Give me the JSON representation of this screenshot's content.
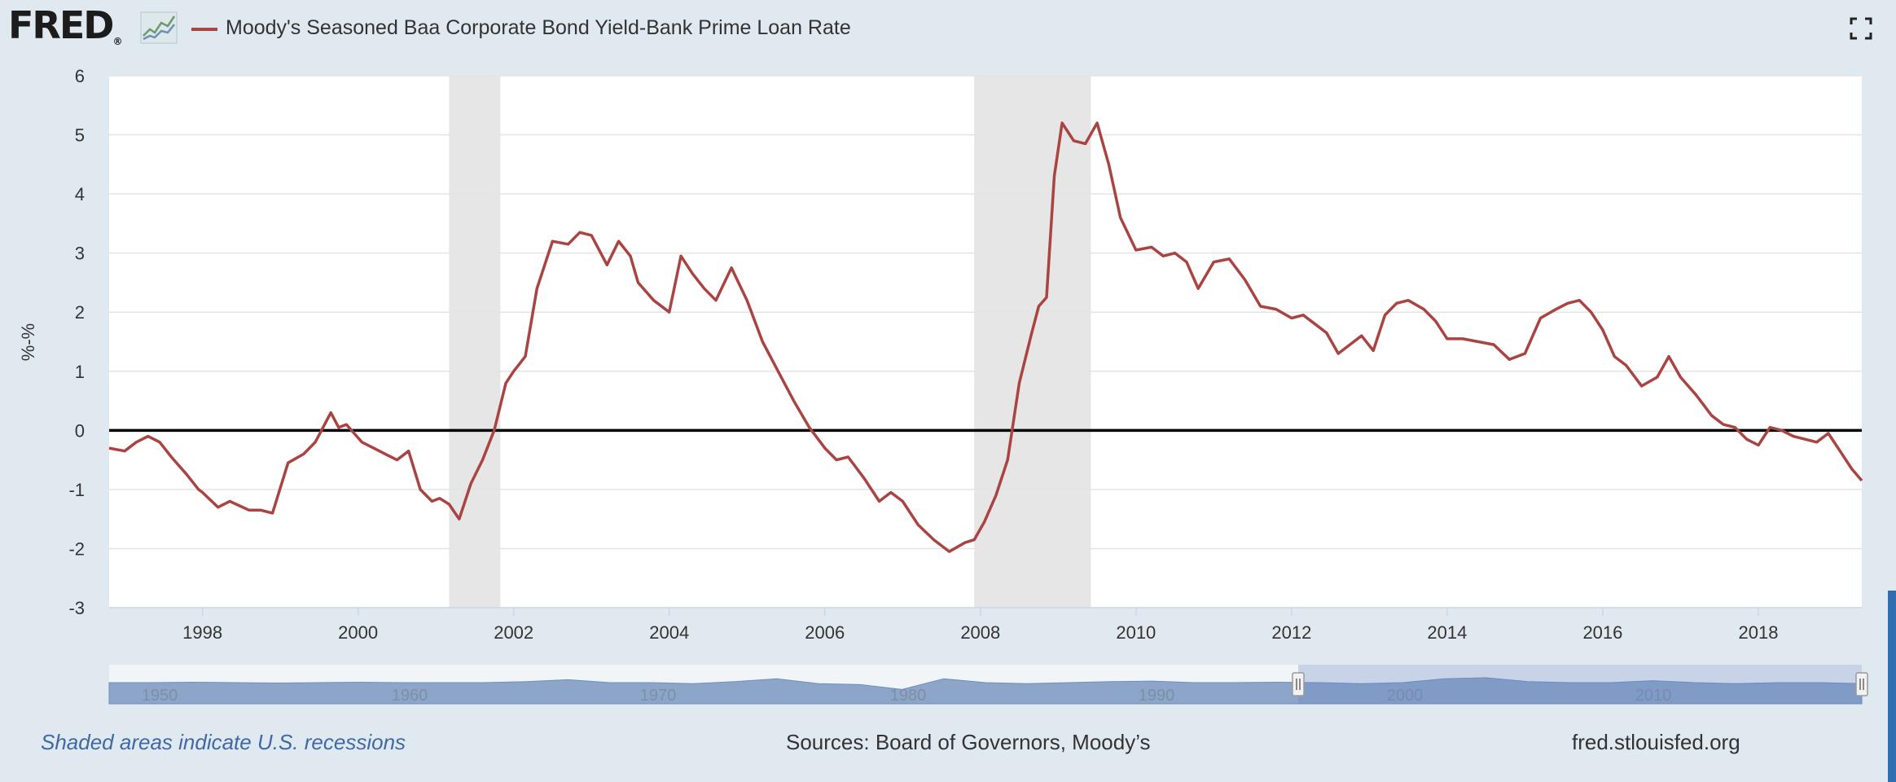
{
  "header": {
    "logo_text": "FRED",
    "logo_registered": "®",
    "logo_icon": "line-chart-icon",
    "fullscreen_icon": "expand-icon"
  },
  "colors": {
    "series": "#a94442",
    "recession": "#e6e6e6",
    "zero_line": "#000000",
    "background": "#e1e9f0",
    "navigator_fill": "#8da5c9"
  },
  "footer": {
    "recession_note": "Shaded areas indicate U.S. recessions",
    "sources": "Sources: Board of Governors, Moody’s",
    "site": "fred.stlouisfed.org"
  },
  "chart_data": {
    "type": "line",
    "title": "",
    "xlabel": "",
    "ylabel": "%-%",
    "ylim": [
      -3,
      6
    ],
    "xlim": [
      1996.8,
      2019.33
    ],
    "yticks": [
      -3,
      -2,
      -1,
      0,
      1,
      2,
      3,
      4,
      5,
      6
    ],
    "xticks": [
      "1998",
      "2000",
      "2002",
      "2004",
      "2006",
      "2008",
      "2010",
      "2012",
      "2014",
      "2016",
      "2018"
    ],
    "grid": true,
    "zero_line": 0,
    "legend_position": "top-left",
    "recessions": [
      [
        2001.17,
        2001.83
      ],
      [
        2007.92,
        2009.42
      ]
    ],
    "series": [
      {
        "name": "Moody's Seasoned Baa Corporate Bond Yield-Bank Prime Loan Rate",
        "x": [
          1996.8,
          1997.0,
          1997.15,
          1997.3,
          1997.45,
          1997.6,
          1997.8,
          1997.95,
          1998.0,
          1998.2,
          1998.35,
          1998.6,
          1998.75,
          1998.9,
          1999.1,
          1999.3,
          1999.45,
          1999.55,
          1999.65,
          1999.75,
          1999.85,
          1999.95,
          2000.05,
          2000.2,
          2000.35,
          2000.5,
          2000.65,
          2000.8,
          2000.95,
          2001.05,
          2001.17,
          2001.3,
          2001.45,
          2001.6,
          2001.75,
          2001.9,
          2002.0,
          2002.15,
          2002.3,
          2002.5,
          2002.7,
          2002.85,
          2003.0,
          2003.2,
          2003.35,
          2003.5,
          2003.6,
          2003.8,
          2004.0,
          2004.15,
          2004.3,
          2004.45,
          2004.6,
          2004.8,
          2005.0,
          2005.2,
          2005.4,
          2005.6,
          2005.8,
          2006.0,
          2006.15,
          2006.3,
          2006.5,
          2006.7,
          2006.85,
          2007.0,
          2007.2,
          2007.4,
          2007.6,
          2007.8,
          2007.92,
          2008.05,
          2008.2,
          2008.35,
          2008.5,
          2008.65,
          2008.75,
          2008.85,
          2008.95,
          2009.05,
          2009.2,
          2009.35,
          2009.5,
          2009.65,
          2009.8,
          2010.0,
          2010.2,
          2010.35,
          2010.5,
          2010.65,
          2010.8,
          2011.0,
          2011.2,
          2011.4,
          2011.6,
          2011.8,
          2012.0,
          2012.15,
          2012.3,
          2012.45,
          2012.6,
          2012.75,
          2012.9,
          2013.05,
          2013.2,
          2013.35,
          2013.5,
          2013.7,
          2013.85,
          2014.0,
          2014.2,
          2014.4,
          2014.6,
          2014.8,
          2015.0,
          2015.2,
          2015.4,
          2015.55,
          2015.7,
          2015.85,
          2016.0,
          2016.15,
          2016.3,
          2016.5,
          2016.7,
          2016.85,
          2017.0,
          2017.2,
          2017.4,
          2017.55,
          2017.7,
          2017.85,
          2018.0,
          2018.15,
          2018.3,
          2018.45,
          2018.6,
          2018.75,
          2018.9,
          2019.05,
          2019.2,
          2019.33
        ],
        "values": [
          -0.3,
          -0.35,
          -0.2,
          -0.1,
          -0.2,
          -0.45,
          -0.75,
          -1.0,
          -1.05,
          -1.3,
          -1.2,
          -1.35,
          -1.35,
          -1.4,
          -0.55,
          -0.4,
          -0.2,
          0.05,
          0.3,
          0.05,
          0.1,
          -0.05,
          -0.2,
          -0.3,
          -0.4,
          -0.5,
          -0.35,
          -1.0,
          -1.2,
          -1.15,
          -1.25,
          -1.5,
          -0.9,
          -0.5,
          0.0,
          0.8,
          1.0,
          1.25,
          2.4,
          3.2,
          3.15,
          3.35,
          3.3,
          2.8,
          3.2,
          2.95,
          2.5,
          2.2,
          2.0,
          2.95,
          2.65,
          2.4,
          2.2,
          2.75,
          2.2,
          1.5,
          1.0,
          0.5,
          0.05,
          -0.3,
          -0.5,
          -0.45,
          -0.8,
          -1.2,
          -1.05,
          -1.2,
          -1.6,
          -1.85,
          -2.05,
          -1.9,
          -1.85,
          -1.55,
          -1.1,
          -0.5,
          0.8,
          1.6,
          2.1,
          2.25,
          4.3,
          5.2,
          4.9,
          4.85,
          5.2,
          4.5,
          3.6,
          3.05,
          3.1,
          2.95,
          3.0,
          2.85,
          2.4,
          2.85,
          2.9,
          2.55,
          2.1,
          2.05,
          1.9,
          1.95,
          1.8,
          1.65,
          1.3,
          1.45,
          1.6,
          1.35,
          1.95,
          2.15,
          2.2,
          2.05,
          1.85,
          1.55,
          1.55,
          1.5,
          1.45,
          1.2,
          1.3,
          1.9,
          2.05,
          2.15,
          2.2,
          2.0,
          1.7,
          1.25,
          1.1,
          0.75,
          0.9,
          1.25,
          0.9,
          0.6,
          0.25,
          0.1,
          0.05,
          -0.15,
          -0.25,
          0.05,
          0.0,
          -0.1,
          -0.15,
          -0.2,
          -0.05,
          -0.35,
          -0.65,
          -0.85
        ]
      }
    ],
    "navigator": {
      "tick_labels": [
        "1950",
        "1960",
        "1970",
        "1980",
        "1990",
        "2000",
        "2010"
      ],
      "selected_range": [
        "1996",
        "2019"
      ]
    }
  }
}
